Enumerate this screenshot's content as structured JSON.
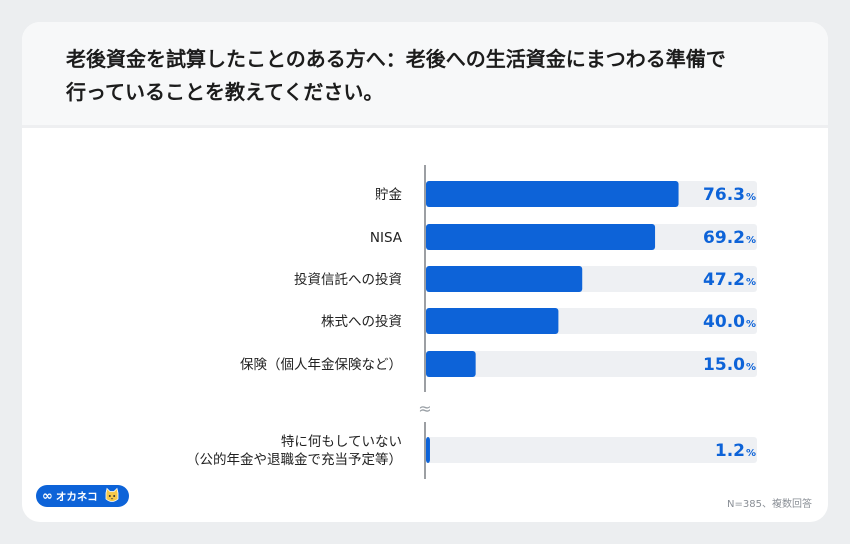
{
  "title": {
    "line1": "老後資金を試算したことのある方へ：老後への生活資金にまつわる準備で",
    "line2": "行っていることを教えてください。"
  },
  "footnote": "N=385、複数回答",
  "break_mark": "≈",
  "brand": {
    "name": "オカネコ",
    "accent": "#0d63d8",
    "track": "#eef0f3"
  },
  "chart_data": {
    "type": "bar",
    "orientation": "horizontal",
    "unit": "%",
    "xlim": [
      0,
      100
    ],
    "categories": [
      "貯金",
      "NISA",
      "投資信託への投資",
      "株式への投資",
      "保険（個人年金保険など）",
      "特に何もしていない\n（公的年金や退職金で充当予定等）"
    ],
    "values": [
      76.3,
      69.2,
      47.2,
      40.0,
      15.0,
      1.2
    ],
    "value_labels": [
      "76.3",
      "69.2",
      "47.2",
      "40.0",
      "15.0",
      "1.2"
    ],
    "axis_break_before_index": 5,
    "color": "#0d63d8"
  }
}
